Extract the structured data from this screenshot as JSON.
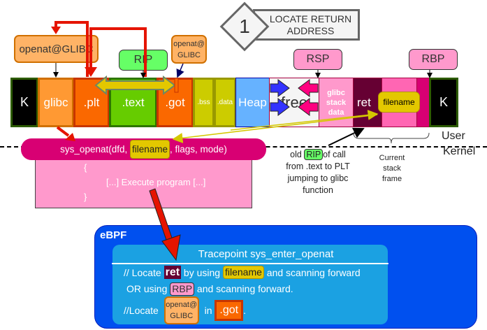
{
  "step": {
    "number": "1",
    "title": "LOCATE RETURN ADDRESS"
  },
  "labels": {
    "openat_glibc": "openat@GLIBC",
    "rip": "RIP",
    "got_entry": "openat@ GLIBC",
    "rsp": "RSP",
    "rbp": "RBP"
  },
  "memory": {
    "k_left": "K",
    "glibc": "glibc",
    "plt": ".plt",
    "text": ".text",
    "got": ".got",
    "bss": ".bss",
    "data": ".data",
    "heap": "Heap",
    "free": "free",
    "glibc_stack": "glibc stack data",
    "ret": "ret",
    "filename": "filename",
    "k_right": "K"
  },
  "boundary": {
    "user": "User",
    "kernel": "Kernel"
  },
  "syscall": {
    "prefix": "sys_openat(dfd, ",
    "arg": "filename",
    "suffix": ", flags, mode)",
    "open_brace": "{",
    "body": "[...] Execute program [...]",
    "close_brace": "}"
  },
  "annotations": {
    "old_rip_pre": "old ",
    "old_rip_tag": "RIP",
    "old_rip_post": "of call",
    "old_rip_rest": "from .text to PLT jumping to glibc function",
    "frame": "Current stack frame"
  },
  "ebpf": {
    "title": "eBPF",
    "tracepoint": "Tracepoint sys_enter_openat",
    "l1_a": "// Locate ",
    "l1_ret": "ret",
    "l1_b": " by using ",
    "l1_fn": "filename",
    "l1_c": " and scanning forward",
    "l2_a": "OR using ",
    "l2_rbp": "RBP",
    "l2_b": " and scanning forward.",
    "l3_a": "//Locate ",
    "l3_sym": "openat@ GLIBC",
    "l3_b": " in ",
    "l3_got": ".got",
    "l3_c": "."
  },
  "colors": {
    "plt": "#fa6800",
    "text": "#66cc00",
    "ret": "#660033",
    "filename": "#e3c800",
    "ebpf_outer": "#0050ef",
    "ebpf_inner": "#1ba1e2",
    "syscall": "#d80073"
  }
}
